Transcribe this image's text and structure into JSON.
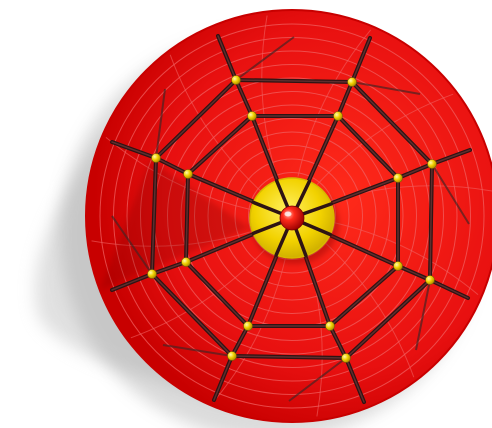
{
  "image": {
    "subject": "spider-web-playground-net",
    "colors": {
      "background": "#ffffff",
      "disc": "#e81010",
      "disc_edge": "#c80000",
      "disc_grooves": "#f06060",
      "hub": "#f2d200",
      "hub_dark": "#d9b800",
      "ball": "#e01010",
      "rope": "#4a2424",
      "rope_dark": "#2e1414",
      "beads": "#f0d000",
      "shadow": "#c8c8c8"
    },
    "icons": {
      "hub": "hub-disc-icon",
      "center_ball": "center-ball-icon",
      "bead": "bead-icon"
    }
  }
}
